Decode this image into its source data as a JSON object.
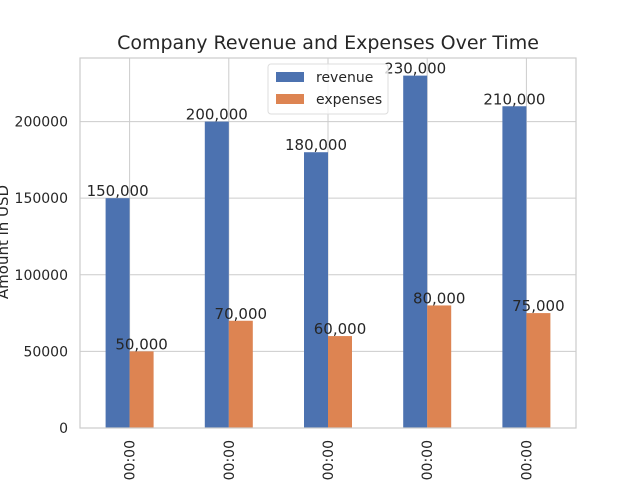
{
  "chart_data": {
    "type": "bar",
    "title": "Company Revenue and Expenses Over Time",
    "xlabel": "",
    "ylabel": "Amount in USD",
    "categories": [
      "00:00",
      "00:00",
      "00:00",
      "00:00",
      "00:00"
    ],
    "series": [
      {
        "name": "revenue",
        "values": [
          150000,
          200000,
          180000,
          230000,
          210000
        ],
        "color": "#4c72b0",
        "labels": [
          "150,000",
          "200,000",
          "180,000",
          "230,000",
          "210,000"
        ]
      },
      {
        "name": "expenses",
        "values": [
          50000,
          70000,
          60000,
          80000,
          75000
        ],
        "color": "#dd8452",
        "labels": [
          "50,000",
          "70,000",
          "60,000",
          "80,000",
          "75,000"
        ]
      }
    ],
    "ylim": [
      0,
      241500
    ],
    "yticks": [
      0,
      50000,
      100000,
      150000,
      200000
    ],
    "ytick_labels": [
      "0",
      "50000",
      "100000",
      "150000",
      "200000"
    ],
    "grid": true,
    "legend_position": "top-center",
    "xtick_rotation": "vertical"
  }
}
